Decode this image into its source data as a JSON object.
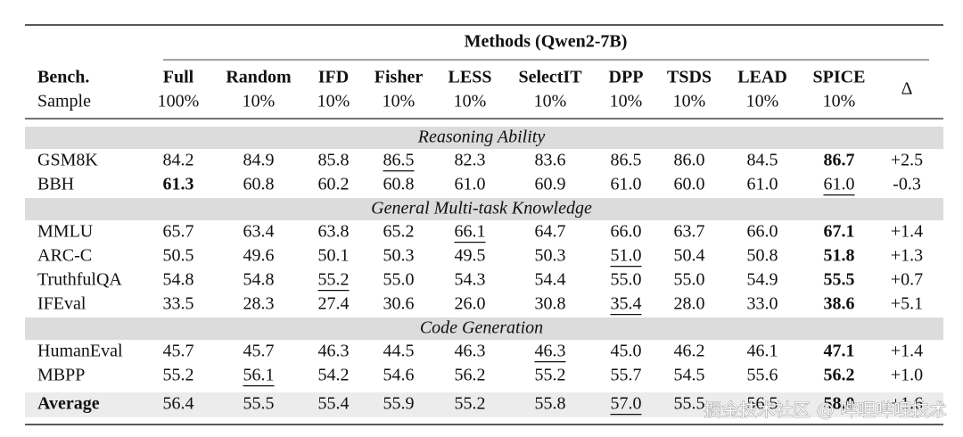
{
  "table": {
    "group_title": "Methods (Qwen2-7B)",
    "bench_label": "Bench.",
    "sample_label": "Sample",
    "delta_label": "Δ",
    "columns": [
      {
        "name": "Full",
        "sample": "100%"
      },
      {
        "name": "Random",
        "sample": "10%"
      },
      {
        "name": "IFD",
        "sample": "10%"
      },
      {
        "name": "Fisher",
        "sample": "10%"
      },
      {
        "name": "LESS",
        "sample": "10%"
      },
      {
        "name": "SelectIT",
        "sample": "10%"
      },
      {
        "name": "DPP",
        "sample": "10%"
      },
      {
        "name": "TSDS",
        "sample": "10%"
      },
      {
        "name": "LEAD",
        "sample": "10%"
      },
      {
        "name": "SPICE",
        "sample": "10%"
      }
    ],
    "sections": [
      {
        "title": "Reasoning Ability",
        "rows": [
          {
            "bench": "GSM8K",
            "values": [
              "84.2",
              "84.9",
              "85.8",
              "86.5",
              "82.3",
              "83.6",
              "86.5",
              "86.0",
              "84.5",
              "86.7"
            ],
            "delta": "+2.5",
            "bold": [
              9
            ],
            "underline": [
              3
            ]
          },
          {
            "bench": "BBH",
            "values": [
              "61.3",
              "60.8",
              "60.2",
              "60.8",
              "61.0",
              "60.9",
              "61.0",
              "60.0",
              "61.0",
              "61.0"
            ],
            "delta": "-0.3",
            "bold": [
              0
            ],
            "underline": [
              9
            ]
          }
        ]
      },
      {
        "title": "General Multi-task Knowledge",
        "rows": [
          {
            "bench": "MMLU",
            "values": [
              "65.7",
              "63.4",
              "63.8",
              "65.2",
              "66.1",
              "64.7",
              "66.0",
              "63.7",
              "66.0",
              "67.1"
            ],
            "delta": "+1.4",
            "bold": [
              9
            ],
            "underline": [
              4
            ]
          },
          {
            "bench": "ARC-C",
            "values": [
              "50.5",
              "49.6",
              "50.1",
              "50.3",
              "49.5",
              "50.3",
              "51.0",
              "50.4",
              "50.8",
              "51.8"
            ],
            "delta": "+1.3",
            "bold": [
              9
            ],
            "underline": [
              6
            ]
          },
          {
            "bench": "TruthfulQA",
            "values": [
              "54.8",
              "54.8",
              "55.2",
              "55.0",
              "54.3",
              "54.4",
              "55.0",
              "55.0",
              "54.9",
              "55.5"
            ],
            "delta": "+0.7",
            "bold": [
              9
            ],
            "underline": [
              2
            ]
          },
          {
            "bench": "IFEval",
            "values": [
              "33.5",
              "28.3",
              "27.4",
              "30.6",
              "26.0",
              "30.8",
              "35.4",
              "28.0",
              "33.0",
              "38.6"
            ],
            "delta": "+5.1",
            "bold": [
              9
            ],
            "underline": [
              6
            ]
          }
        ]
      },
      {
        "title": "Code Generation",
        "rows": [
          {
            "bench": "HumanEval",
            "values": [
              "45.7",
              "45.7",
              "46.3",
              "44.5",
              "46.3",
              "46.3",
              "45.0",
              "46.2",
              "46.1",
              "47.1"
            ],
            "delta": "+1.4",
            "bold": [
              9
            ],
            "underline": [
              5
            ]
          },
          {
            "bench": "MBPP",
            "values": [
              "55.2",
              "56.1",
              "54.2",
              "54.6",
              "56.2",
              "55.2",
              "55.7",
              "54.5",
              "55.6",
              "56.2"
            ],
            "delta": "+1.0",
            "bold": [
              9
            ],
            "underline": [
              1
            ]
          }
        ]
      }
    ],
    "average": {
      "bench": "Average",
      "values": [
        "56.4",
        "55.5",
        "55.4",
        "55.9",
        "55.2",
        "55.8",
        "57.0",
        "55.5",
        "56.5",
        "58.0"
      ],
      "delta": "+1.6",
      "bold": [
        9
      ],
      "underline": [
        6
      ]
    },
    "watermark": "掘金技术社区 @ 哔哩哔哩技术"
  }
}
